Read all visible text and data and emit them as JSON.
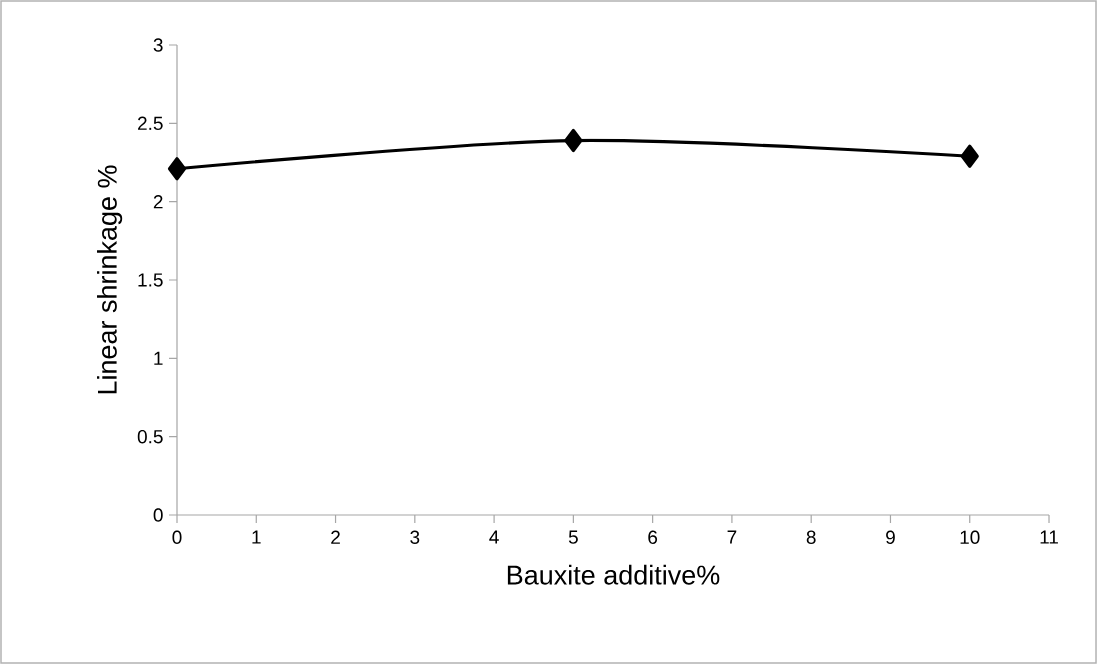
{
  "chart_data": {
    "type": "line",
    "xlabel": "Bauxite additive%",
    "ylabel": "Linear shrinkage %",
    "x": [
      0,
      5,
      10
    ],
    "series": [
      {
        "color": "#000000",
        "values": [
          2.21,
          2.39,
          2.29
        ]
      }
    ],
    "xlim": [
      0,
      11
    ],
    "xticks": [
      0,
      1,
      2,
      3,
      4,
      5,
      6,
      7,
      8,
      9,
      10,
      11
    ],
    "ylim": [
      0,
      3
    ],
    "yticks": [
      0,
      0.5,
      1,
      1.5,
      2,
      2.5,
      3
    ],
    "grid": false,
    "marker": "diamond",
    "line_style": "solid"
  }
}
